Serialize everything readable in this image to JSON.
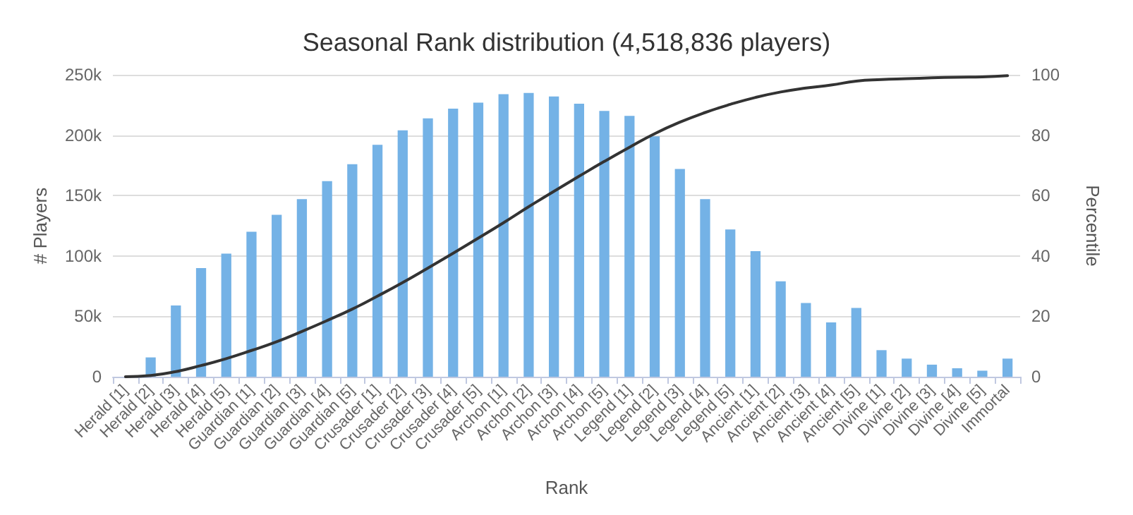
{
  "chart_data": {
    "type": "bar",
    "title": "Seasonal Rank distribution (4,518,836 players)",
    "xlabel": "Rank",
    "ylabel": "# Players",
    "y2label": "Percentile",
    "categories": [
      "Herald [1]",
      "Herald [2]",
      "Herald [3]",
      "Herald [4]",
      "Herald [5]",
      "Guardian [1]",
      "Guardian [2]",
      "Guardian [3]",
      "Guardian [4]",
      "Guardian [5]",
      "Crusader [1]",
      "Crusader [2]",
      "Crusader [3]",
      "Crusader [4]",
      "Crusader [5]",
      "Archon [1]",
      "Archon [2]",
      "Archon [3]",
      "Archon [4]",
      "Archon [5]",
      "Legend [1]",
      "Legend [2]",
      "Legend [3]",
      "Legend [4]",
      "Legend [5]",
      "Ancient [1]",
      "Ancient [2]",
      "Ancient [3]",
      "Ancient [4]",
      "Ancient [5]",
      "Divine [1]",
      "Divine [2]",
      "Divine [3]",
      "Divine [4]",
      "Divine [5]",
      "Immortal"
    ],
    "series": [
      {
        "color": "#74b2e6",
        "values": [
          null,
          16000,
          59000,
          90000,
          102000,
          120000,
          134000,
          147000,
          162000,
          176000,
          192000,
          204000,
          214000,
          222000,
          227000,
          234000,
          235000,
          232000,
          226000,
          220000,
          216000,
          199000,
          172000,
          147000,
          122000,
          104000,
          79000,
          61000,
          45000,
          57000,
          22000,
          15000,
          10000,
          7000,
          5000,
          15000
        ]
      },
      {
        "type": "line",
        "axis": "y2",
        "color": "#333333",
        "values": [
          0,
          0.4,
          1.7,
          3.7,
          6,
          8.7,
          11.6,
          15,
          18.6,
          22.4,
          26.7,
          31.2,
          36,
          40.9,
          45.9,
          51,
          56.3,
          61.4,
          66.4,
          71.3,
          76,
          80.5,
          84.3,
          87.5,
          90.2,
          92.5,
          94.3,
          95.6,
          96.6,
          97.9,
          98.4,
          98.7,
          99,
          99.2,
          99.3,
          99.7
        ]
      }
    ],
    "ylim": [
      0,
      250000
    ],
    "yticks": [
      0,
      {
        "value": 50000,
        "label": "50k"
      },
      {
        "value": 100000,
        "label": "100k"
      },
      {
        "value": 150000,
        "label": "150k"
      },
      {
        "value": 200000,
        "label": "200k"
      },
      {
        "value": 250000,
        "label": "250k"
      }
    ],
    "y2lim": [
      0,
      100
    ],
    "y2ticks": [
      0,
      20,
      40,
      60,
      80,
      100
    ],
    "grid": "y",
    "marker": "none",
    "line_style": "solid"
  }
}
